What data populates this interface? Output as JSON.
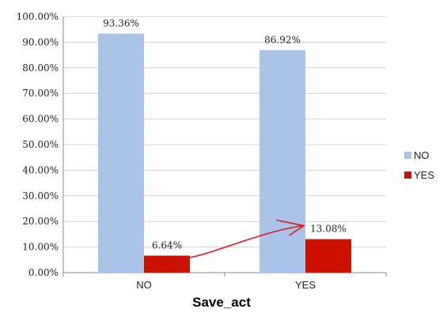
{
  "chart_data": {
    "type": "bar",
    "categories": [
      "NO",
      "YES"
    ],
    "series": [
      {
        "name": "NO",
        "values": [
          93.36,
          86.92
        ],
        "color": "#a9c4e8"
      },
      {
        "name": "YES",
        "values": [
          6.64,
          13.08
        ],
        "color": "#cc1100"
      }
    ],
    "data_labels": [
      [
        "93.36%",
        "86.92%"
      ],
      [
        "6.64%",
        "13.08%"
      ]
    ],
    "xlabel": "Save_act",
    "ylabel": "",
    "ylim": [
      0,
      100
    ],
    "y_ticks": [
      "0.00%",
      "10.00%",
      "20.00%",
      "30.00%",
      "40.00%",
      "50.00%",
      "60.00%",
      "70.00%",
      "80.00%",
      "90.00%",
      "100.00%"
    ],
    "grid": true,
    "legend_position": "right",
    "annotation": "red hand-drawn arrow pointing from the 6.64% bar toward the 13.08% bar"
  }
}
